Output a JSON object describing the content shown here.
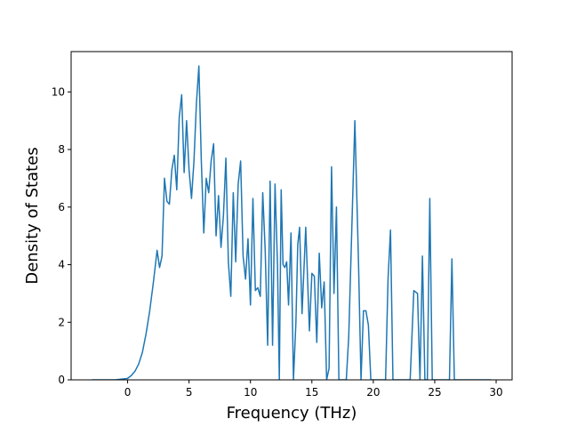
{
  "chart_data": {
    "type": "line",
    "title": "",
    "xlabel": "Frequency (THz)",
    "ylabel": "Density of States",
    "xlim": [
      -4.6,
      31.3
    ],
    "ylim": [
      0,
      11.4
    ],
    "xticks": [
      0,
      5,
      10,
      15,
      20,
      25,
      30
    ],
    "yticks": [
      0,
      2,
      4,
      6,
      8,
      10
    ],
    "grid": false,
    "legend": "none",
    "line_color": "#1f77b4",
    "series": [
      {
        "x": [
          -2.9,
          -2.0,
          -1.0,
          0.0,
          0.3,
          0.6,
          0.9,
          1.2,
          1.5,
          1.8,
          2.1,
          2.4,
          2.6,
          2.8,
          3.0,
          3.2,
          3.4,
          3.6,
          3.8,
          4.0,
          4.2,
          4.4,
          4.6,
          4.8,
          5.0,
          5.2,
          5.4,
          5.6,
          5.8,
          6.0,
          6.2,
          6.4,
          6.6,
          6.8,
          7.0,
          7.2,
          7.4,
          7.6,
          7.8,
          8.0,
          8.2,
          8.4,
          8.6,
          8.8,
          9.0,
          9.2,
          9.4,
          9.6,
          9.8,
          10.0,
          10.2,
          10.4,
          10.6,
          10.8,
          11.0,
          11.2,
          11.4,
          11.6,
          11.8,
          12.0,
          12.2,
          12.35,
          12.5,
          12.65,
          12.8,
          12.95,
          13.1,
          13.3,
          13.5,
          13.7,
          13.85,
          14.0,
          14.2,
          14.5,
          14.8,
          15.0,
          15.2,
          15.4,
          15.6,
          15.8,
          16.0,
          16.2,
          16.4,
          16.6,
          16.8,
          17.0,
          17.2,
          17.4,
          17.6,
          17.8,
          18.0,
          18.5,
          18.8,
          19.0,
          19.2,
          19.4,
          19.6,
          19.8,
          20.0,
          20.2,
          20.5,
          21.0,
          21.2,
          21.4,
          21.6,
          22.0,
          23.0,
          23.3,
          23.6,
          23.8,
          24.0,
          24.2,
          24.4,
          24.6,
          24.8,
          25.0,
          26.0,
          26.2,
          26.4,
          26.6,
          27.0,
          28.0,
          29.6
        ],
        "y": [
          0.0,
          0.0,
          0.0,
          0.05,
          0.15,
          0.3,
          0.55,
          0.95,
          1.6,
          2.4,
          3.4,
          4.5,
          3.9,
          4.3,
          7.0,
          6.2,
          6.1,
          7.3,
          7.8,
          6.6,
          9.1,
          9.9,
          7.2,
          9.0,
          7.3,
          6.3,
          7.6,
          9.6,
          10.9,
          7.6,
          5.1,
          7.0,
          6.5,
          7.6,
          8.2,
          5.0,
          6.4,
          4.6,
          5.7,
          7.7,
          4.1,
          2.9,
          6.5,
          4.1,
          6.8,
          7.6,
          4.3,
          3.5,
          4.9,
          2.6,
          6.3,
          3.1,
          3.2,
          2.9,
          6.5,
          4.5,
          1.2,
          6.9,
          1.2,
          6.8,
          4.0,
          0.0,
          6.6,
          4.0,
          3.9,
          4.1,
          2.6,
          5.1,
          0.0,
          2.0,
          4.7,
          5.3,
          2.3,
          5.3,
          1.7,
          3.7,
          3.6,
          1.3,
          4.4,
          2.5,
          3.4,
          0.0,
          0.4,
          7.4,
          3.0,
          6.0,
          0.0,
          0.0,
          0.0,
          0.0,
          1.5,
          9.0,
          4.0,
          0.0,
          2.4,
          2.4,
          1.9,
          0.0,
          0.0,
          0.0,
          0.0,
          0.0,
          3.5,
          5.2,
          0.0,
          0.0,
          0.0,
          3.1,
          3.0,
          0.0,
          4.3,
          0.0,
          0.0,
          6.3,
          0.0,
          0.0,
          0.0,
          0.0,
          4.2,
          0.0,
          0.0,
          0.0,
          0.0
        ]
      }
    ]
  }
}
